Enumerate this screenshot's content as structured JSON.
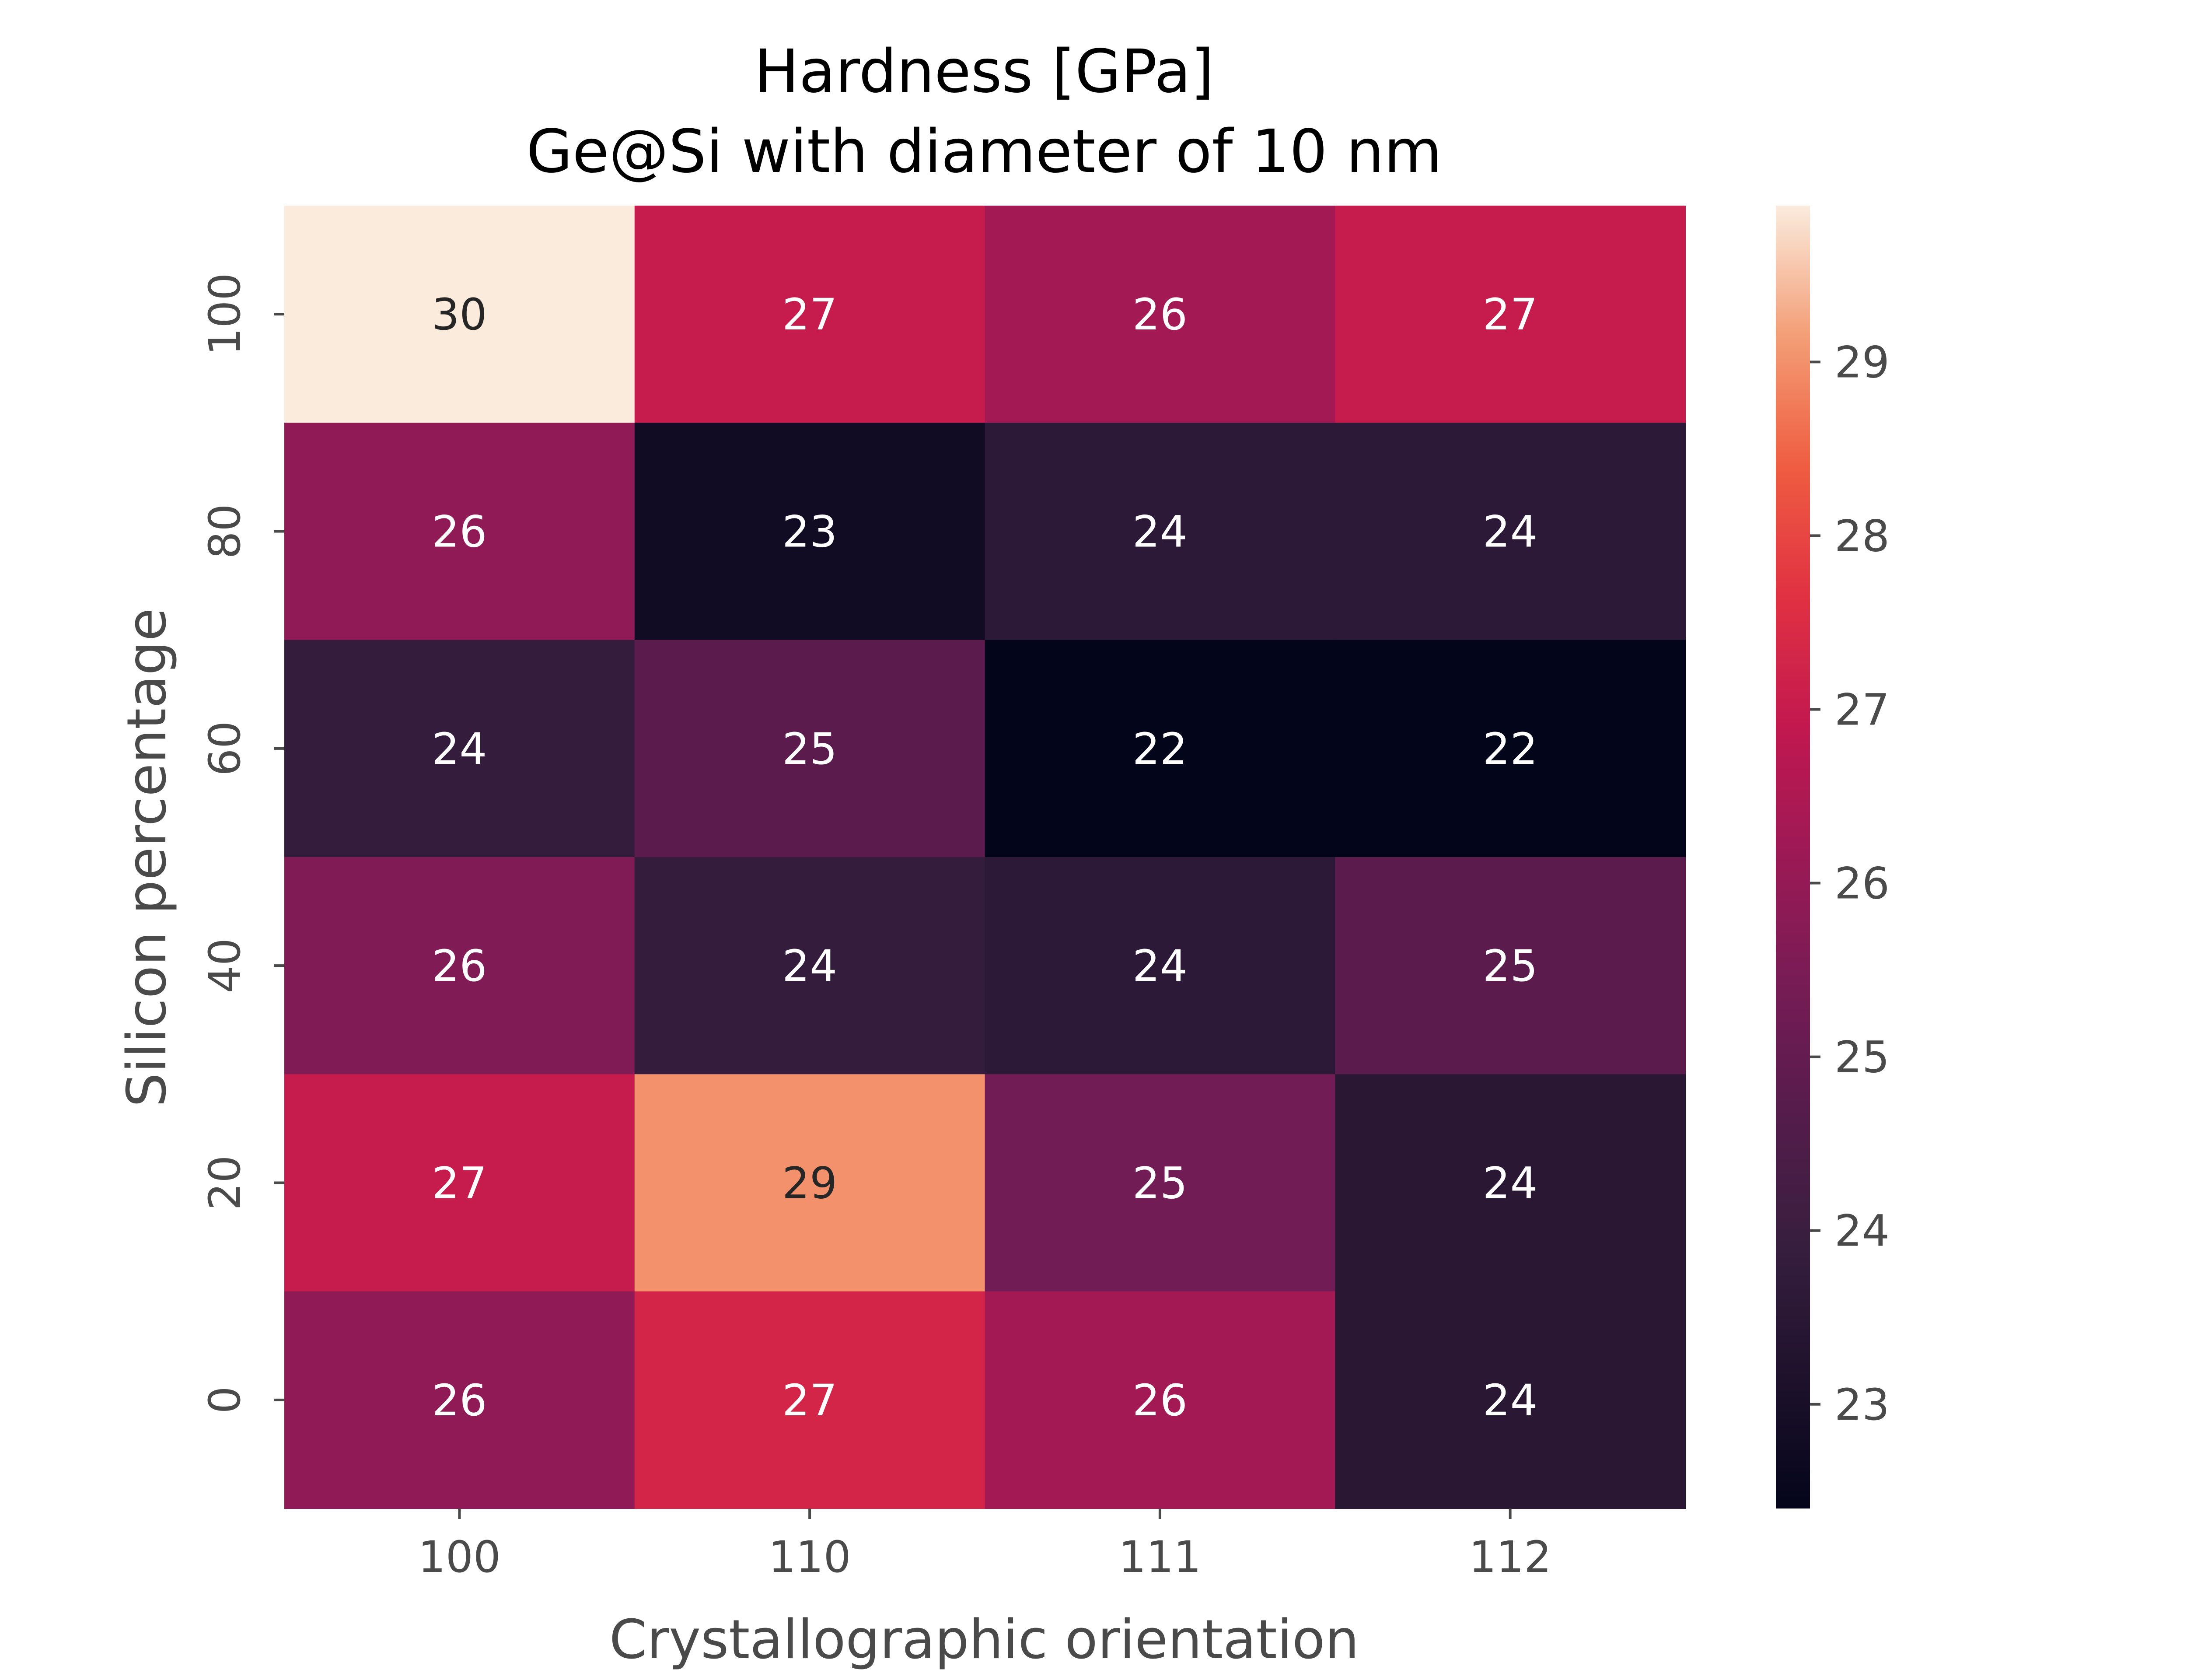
{
  "chart_data": {
    "type": "heatmap",
    "title": "Hardness [GPa]",
    "subtitle": "Ge@Si with diameter of 10 nm",
    "xlabel": "Crystallographic orientation",
    "ylabel": "Silicon percentage",
    "x_categories": [
      "100",
      "110",
      "111",
      "112"
    ],
    "y_categories": [
      "100",
      "80",
      "60",
      "40",
      "20",
      "0"
    ],
    "values": [
      [
        29.9,
        27.0,
        26.3,
        27.0
      ],
      [
        25.9,
        22.8,
        23.6,
        23.6
      ],
      [
        23.8,
        24.8,
        22.4,
        22.4
      ],
      [
        25.6,
        23.8,
        23.6,
        24.8
      ],
      [
        27.0,
        29.0,
        25.3,
        23.5
      ],
      [
        25.9,
        27.3,
        26.3,
        23.5
      ]
    ],
    "cell_labels": [
      [
        "30",
        "27",
        "26",
        "27"
      ],
      [
        "26",
        "23",
        "24",
        "24"
      ],
      [
        "24",
        "25",
        "22",
        "22"
      ],
      [
        "26",
        "24",
        "24",
        "25"
      ],
      [
        "27",
        "29",
        "25",
        "24"
      ],
      [
        "26",
        "27",
        "26",
        "24"
      ]
    ],
    "colorbar": {
      "min": 22.4,
      "max": 29.9,
      "ticks": [
        "23",
        "24",
        "25",
        "26",
        "27",
        "28",
        "29"
      ],
      "colormap": "rocket"
    }
  }
}
